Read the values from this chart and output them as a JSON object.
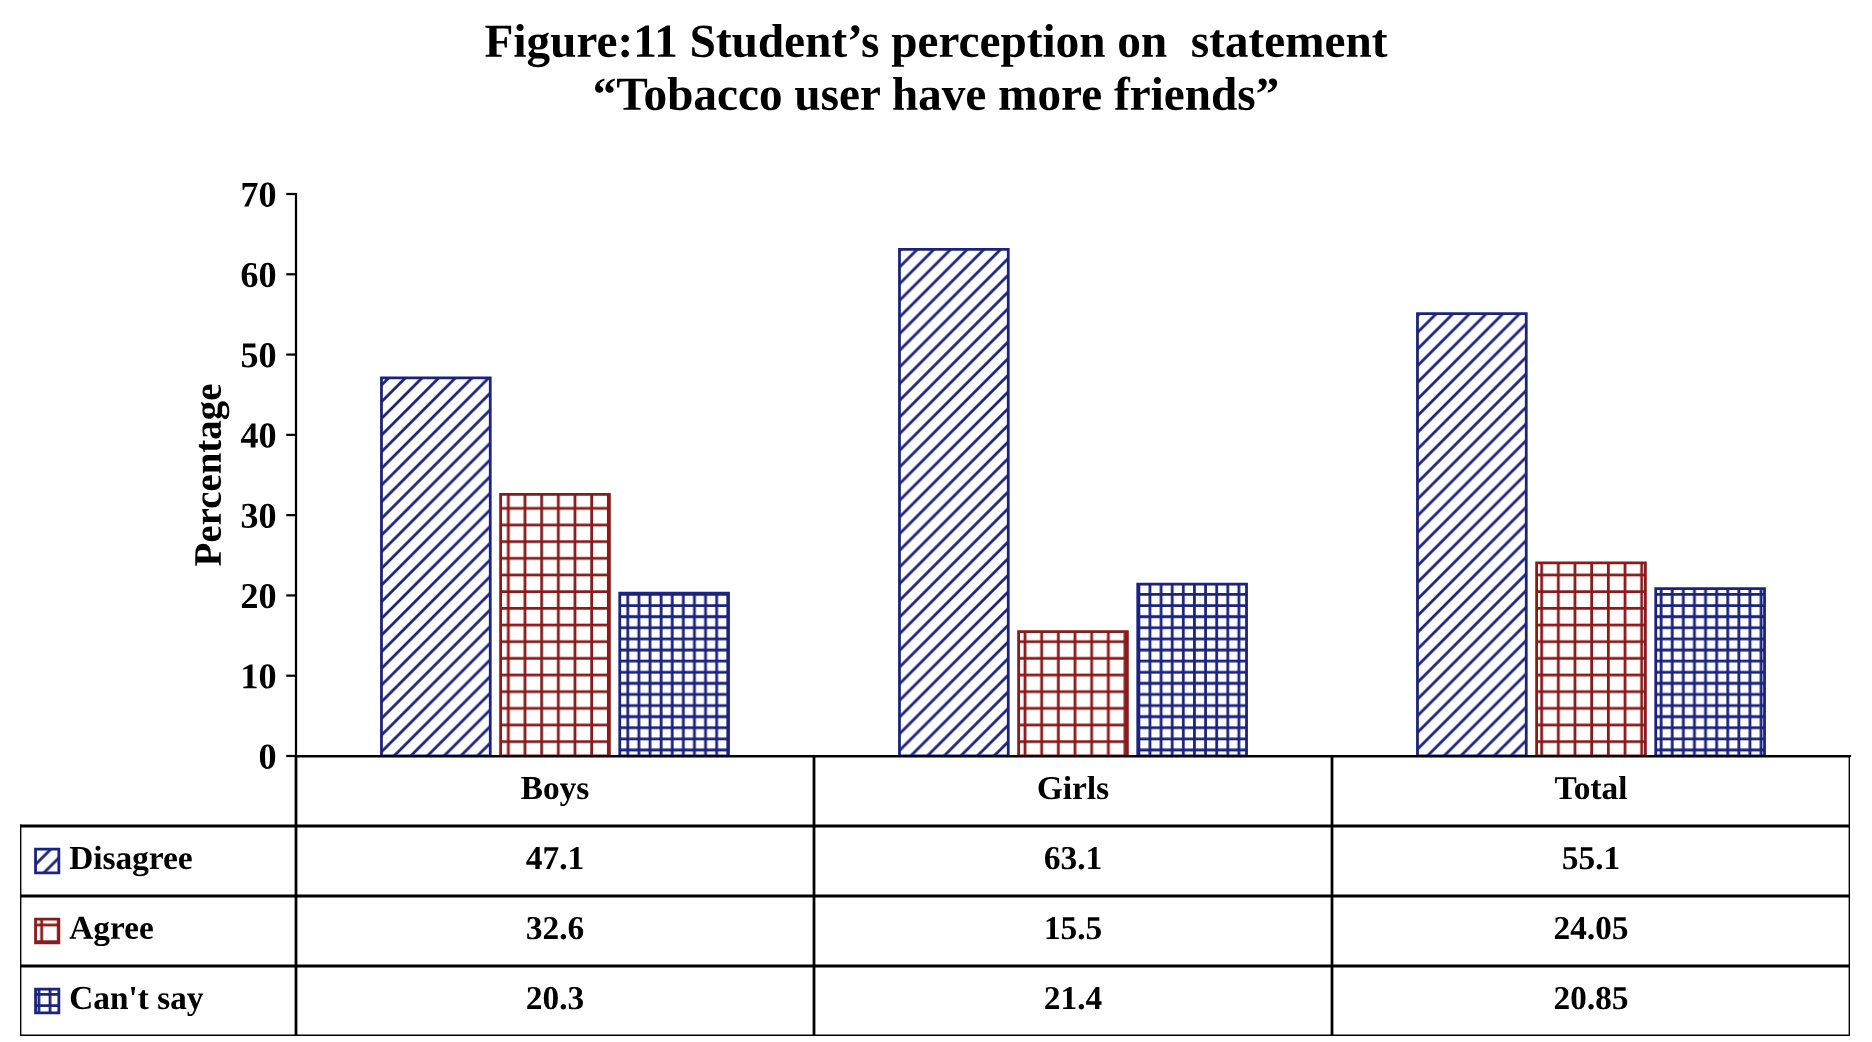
{
  "chart_data": {
    "type": "bar",
    "title": "Figure:11 Student’s perception on  statement\n“Tobacco user have more friends”",
    "ylabel": "Percentage",
    "categories": [
      "Boys",
      "Girls",
      "Total"
    ],
    "series": [
      {
        "name": "Disagree",
        "color": "#1a237e",
        "values": [
          47.1,
          63.1,
          55.1
        ]
      },
      {
        "name": "Agree",
        "color": "#8b1a1a",
        "values": [
          32.6,
          15.5,
          24.05
        ]
      },
      {
        "name": "Can't say",
        "color": "#1a237e",
        "values": [
          20.3,
          21.4,
          20.85
        ]
      }
    ],
    "ylim": [
      0,
      70
    ],
    "yticks": [
      0,
      10,
      20,
      30,
      40,
      50,
      60,
      70
    ],
    "grid": false,
    "legend": "bottom",
    "data_labels": true
  }
}
